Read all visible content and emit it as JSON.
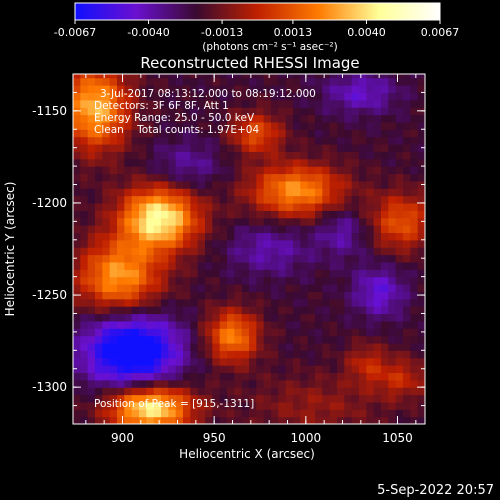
{
  "colorbar": {
    "ticks": [
      "-0.0067",
      "-0.0040",
      "-0.0013",
      "0.0013",
      "0.0040",
      "0.0067"
    ],
    "tick_values": [
      -0.0067,
      -0.004,
      -0.0013,
      0.0013,
      0.004,
      0.0067
    ],
    "range": [
      -0.0067,
      0.0067
    ],
    "unit_label": "(photons cm⁻² s⁻¹ asec⁻²)",
    "colors": [
      "#1010ff",
      "#6a10d0",
      "#3a0a30",
      "#c02000",
      "#ff7a00",
      "#ffff99",
      "#ffffff"
    ]
  },
  "chart_data": {
    "type": "heatmap",
    "title": "Reconstructed RHESSI Image",
    "xlabel": "Heliocentric X (arcsec)",
    "ylabel": "Heliocentric Y (arcsec)",
    "xlim": [
      873,
      1065
    ],
    "ylim": [
      -1320,
      -1130
    ],
    "xticks": [
      900,
      950,
      1000,
      1050
    ],
    "yticks": [
      -1150,
      -1200,
      -1250,
      -1300
    ],
    "info_lines": [
      "3-Jul-2017 08:13:12.000 to 08:19:12.000",
      "Detectors: 3F 6F 8F, Att 1",
      "Energy Range: 25.0 - 50.0 keV",
      "Clean    Total counts: 1.97E+04"
    ],
    "peak_label": "Position of Peak = [915,-1311]",
    "peak": [
      915,
      -1311
    ],
    "sources": [
      {
        "x": 920,
        "y": -1208,
        "amp": 0.0068,
        "sx": 15,
        "sy": 12
      },
      {
        "x": 898,
        "y": -1240,
        "amp": 0.005,
        "sx": 16,
        "sy": 14
      },
      {
        "x": 885,
        "y": -1148,
        "amp": 0.0055,
        "sx": 13,
        "sy": 16
      },
      {
        "x": 915,
        "y": -1311,
        "amp": 0.0068,
        "sx": 16,
        "sy": 9
      },
      {
        "x": 995,
        "y": -1193,
        "amp": 0.0048,
        "sx": 18,
        "sy": 10
      },
      {
        "x": 973,
        "y": -1162,
        "amp": 0.0033,
        "sx": 10,
        "sy": 8
      },
      {
        "x": 960,
        "y": -1272,
        "amp": 0.0045,
        "sx": 10,
        "sy": 10
      },
      {
        "x": 1052,
        "y": -1210,
        "amp": 0.0034,
        "sx": 12,
        "sy": 11
      },
      {
        "x": 1033,
        "y": -1287,
        "amp": 0.002,
        "sx": 8,
        "sy": 8
      },
      {
        "x": 1052,
        "y": -1295,
        "amp": 0.0022,
        "sx": 10,
        "sy": 8
      },
      {
        "x": 1005,
        "y": -1310,
        "amp": 0.0014,
        "sx": 25,
        "sy": 12
      },
      {
        "x": 905,
        "y": -1280,
        "amp": -0.006,
        "sx": 18,
        "sy": 14
      },
      {
        "x": 1030,
        "y": -1140,
        "amp": -0.0022,
        "sx": 14,
        "sy": 8
      },
      {
        "x": 1040,
        "y": -1248,
        "amp": -0.0025,
        "sx": 10,
        "sy": 10
      },
      {
        "x": 1020,
        "y": -1215,
        "amp": -0.0018,
        "sx": 10,
        "sy": 10
      },
      {
        "x": 935,
        "y": -1180,
        "amp": -0.0016,
        "sx": 14,
        "sy": 10
      },
      {
        "x": 980,
        "y": -1225,
        "amp": -0.0018,
        "sx": 16,
        "sy": 10
      }
    ],
    "baseline": -0.0022,
    "grid": false
  },
  "footer": {
    "timestamp": "5-Sep-2022 20:57"
  }
}
